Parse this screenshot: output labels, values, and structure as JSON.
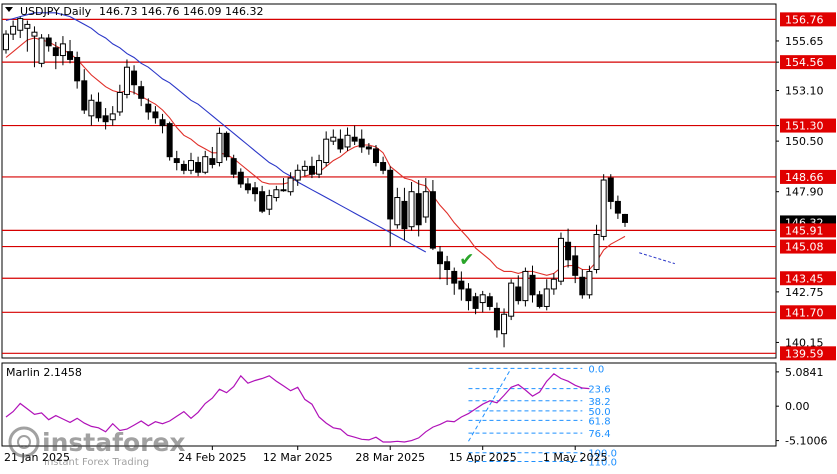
{
  "header": {
    "symbol": "USDJPY,Daily",
    "ohlc": "146.73 146.76 146.09 146.32",
    "collapse_icon": "triangle-down-icon"
  },
  "colors": {
    "bull": "#ffffff",
    "bear": "#000000",
    "ma_fast": "#e0302a",
    "ma_slow": "#2b37c8",
    "level_line": "#d60000",
    "level_label_bg": "#e00000",
    "current_price_bg": "#000000",
    "oscillator": "#b012b8",
    "fib": "#1e90ff",
    "check": "#2aa52a"
  },
  "chart_data": [
    {
      "type": "candlestick",
      "title": "USDJPY,Daily",
      "ylim": [
        139.35,
        157.55
      ],
      "y_ticks": [
        155.65,
        154.56,
        153.1,
        151.3,
        150.5,
        147.9,
        142.75,
        140.15
      ],
      "x_tick_labels": [
        "24 Feb 2025",
        "12 Mar 2025",
        "28 Mar 2025",
        "15 Apr 2025",
        "1 May 2025"
      ],
      "current_price": 146.32,
      "horizontal_levels": [
        156.76,
        154.56,
        151.3,
        148.66,
        145.91,
        145.08,
        143.45,
        141.7,
        139.59
      ],
      "candles": [
        [
          155.2,
          156.0,
          155.0,
          156.2
        ],
        [
          156.0,
          156.4,
          155.7,
          156.7
        ],
        [
          156.2,
          156.8,
          155.8,
          156.9
        ],
        [
          156.3,
          156.5,
          155.1,
          156.7
        ],
        [
          155.9,
          156.1,
          154.3,
          156.4
        ],
        [
          154.5,
          155.8,
          154.3,
          156.0
        ],
        [
          155.8,
          155.4,
          155.1,
          156.0
        ],
        [
          155.3,
          154.9,
          154.2,
          155.6
        ],
        [
          154.9,
          155.5,
          154.4,
          155.9
        ],
        [
          155.1,
          154.7,
          154.5,
          155.7
        ],
        [
          154.8,
          153.6,
          153.2,
          155.1
        ],
        [
          153.6,
          152.1,
          151.9,
          154.2
        ],
        [
          151.8,
          152.6,
          151.3,
          152.9
        ],
        [
          152.5,
          151.7,
          151.5,
          153.0
        ],
        [
          151.8,
          151.5,
          151.1,
          152.2
        ],
        [
          151.6,
          151.9,
          151.3,
          152.3
        ],
        [
          152.0,
          153.0,
          151.8,
          153.4
        ],
        [
          152.9,
          154.3,
          152.7,
          154.7
        ],
        [
          154.1,
          153.4,
          152.9,
          154.4
        ],
        [
          153.3,
          152.7,
          152.3,
          153.6
        ],
        [
          152.4,
          152.0,
          151.6,
          152.7
        ],
        [
          152.0,
          151.7,
          151.4,
          152.3
        ],
        [
          151.6,
          151.3,
          150.9,
          151.9
        ],
        [
          151.4,
          149.7,
          149.5,
          151.5
        ],
        [
          149.6,
          149.4,
          149.0,
          150.0
        ],
        [
          149.3,
          149.0,
          148.8,
          149.5
        ],
        [
          149.0,
          149.5,
          148.8,
          149.9
        ],
        [
          149.4,
          148.9,
          148.7,
          149.7
        ],
        [
          148.9,
          149.7,
          148.8,
          150.0
        ],
        [
          149.6,
          149.3,
          149.1,
          150.2
        ],
        [
          149.4,
          150.9,
          149.2,
          151.2
        ],
        [
          150.9,
          149.7,
          149.5,
          151.0
        ],
        [
          149.6,
          148.8,
          148.6,
          149.8
        ],
        [
          148.9,
          148.3,
          148.1,
          149.1
        ],
        [
          148.3,
          148.0,
          147.8,
          148.6
        ],
        [
          148.1,
          147.8,
          147.4,
          148.4
        ],
        [
          147.9,
          146.9,
          146.8,
          148.2
        ],
        [
          147.0,
          147.7,
          146.7,
          148.0
        ],
        [
          147.6,
          148.0,
          147.4,
          148.2
        ],
        [
          148.0,
          148.0,
          147.9,
          148.6
        ],
        [
          147.9,
          148.6,
          147.7,
          148.9
        ],
        [
          148.5,
          149.0,
          148.2,
          149.3
        ],
        [
          149.0,
          149.2,
          148.7,
          149.5
        ],
        [
          149.2,
          148.8,
          148.6,
          149.7
        ],
        [
          148.8,
          149.5,
          148.6,
          149.8
        ],
        [
          149.4,
          150.6,
          149.2,
          151.0
        ],
        [
          150.5,
          150.7,
          150.3,
          151.1
        ],
        [
          150.6,
          150.1,
          149.9,
          151.1
        ],
        [
          150.2,
          150.8,
          150.0,
          151.2
        ],
        [
          150.7,
          150.5,
          150.3,
          151.3
        ],
        [
          150.6,
          150.2,
          149.9,
          151.1
        ],
        [
          150.2,
          150.1,
          149.8,
          150.4
        ],
        [
          150.1,
          149.4,
          149.2,
          150.3
        ],
        [
          149.4,
          149.0,
          148.8,
          149.7
        ],
        [
          149.0,
          146.5,
          145.1,
          149.2
        ],
        [
          146.2,
          147.6,
          146.0,
          148.1
        ],
        [
          147.4,
          146.0,
          145.4,
          148.1
        ],
        [
          146.1,
          147.9,
          145.9,
          148.4
        ],
        [
          147.8,
          146.2,
          145.6,
          148.5
        ],
        [
          146.6,
          147.9,
          146.3,
          148.6
        ],
        [
          147.9,
          145.0,
          144.9,
          148.5
        ],
        [
          144.8,
          144.2,
          143.4,
          145.1
        ],
        [
          144.3,
          143.9,
          143.1,
          144.6
        ],
        [
          143.8,
          143.2,
          142.6,
          144.0
        ],
        [
          143.3,
          142.9,
          142.3,
          143.8
        ],
        [
          142.9,
          142.3,
          141.8,
          143.2
        ],
        [
          142.5,
          141.9,
          141.6,
          142.7
        ],
        [
          142.2,
          142.6,
          141.7,
          142.8
        ],
        [
          142.5,
          142.0,
          141.8,
          142.7
        ],
        [
          141.9,
          140.8,
          140.4,
          142.2
        ],
        [
          140.6,
          141.6,
          139.9,
          141.9
        ],
        [
          141.5,
          143.2,
          141.3,
          143.4
        ],
        [
          143.0,
          142.3,
          142.1,
          143.6
        ],
        [
          142.3,
          143.8,
          142.0,
          144.0
        ],
        [
          143.6,
          142.6,
          142.2,
          144.1
        ],
        [
          142.6,
          142.0,
          141.9,
          142.8
        ],
        [
          142.0,
          142.9,
          141.8,
          143.4
        ],
        [
          142.9,
          143.4,
          142.6,
          143.7
        ],
        [
          143.3,
          145.5,
          143.1,
          145.8
        ],
        [
          145.3,
          144.4,
          144.0,
          146.0
        ],
        [
          144.6,
          143.6,
          143.2,
          145.1
        ],
        [
          143.5,
          142.6,
          142.4,
          143.9
        ],
        [
          142.6,
          143.8,
          142.4,
          144.1
        ],
        [
          143.9,
          145.7,
          143.7,
          146.2
        ],
        [
          145.6,
          148.5,
          145.4,
          148.8
        ],
        [
          148.6,
          147.4,
          147.0,
          148.8
        ],
        [
          147.4,
          146.8,
          146.5,
          147.7
        ],
        [
          146.73,
          146.32,
          146.09,
          146.76
        ]
      ],
      "series": [
        {
          "name": "fast",
          "values": [
            154.8,
            155.1,
            155.4,
            155.7,
            155.8,
            155.7,
            155.6,
            155.4,
            155.2,
            155.0,
            154.7,
            154.3,
            153.9,
            153.6,
            153.3,
            153.1,
            153.0,
            153.1,
            153.0,
            152.8,
            152.6,
            152.4,
            152.1,
            151.7,
            151.2,
            150.8,
            150.6,
            150.3,
            150.1,
            149.9,
            149.9,
            149.8,
            149.6,
            149.3,
            149.0,
            148.7,
            148.4,
            148.3,
            148.3,
            148.3,
            148.4,
            148.6,
            148.7,
            148.8,
            148.9,
            149.2,
            149.5,
            149.7,
            150.0,
            150.2,
            150.3,
            150.3,
            150.2,
            149.9,
            149.2,
            148.9,
            148.6,
            148.5,
            148.3,
            148.2,
            147.7,
            147.2,
            146.8,
            146.3,
            145.9,
            145.5,
            145.0,
            144.7,
            144.4,
            144.0,
            143.8,
            143.8,
            143.7,
            143.8,
            143.8,
            143.7,
            143.6,
            143.7,
            144.0,
            144.1,
            144.1,
            143.9,
            143.9,
            144.3,
            144.9,
            145.2,
            145.4,
            145.6
          ]
        },
        {
          "name": "slow",
          "values": [
            156.7,
            156.8,
            156.9,
            157.0,
            157.1,
            157.1,
            157.1,
            157.1,
            157.0,
            156.9,
            156.7,
            156.5,
            156.3,
            156.0,
            155.8,
            155.5,
            155.3,
            155.0,
            154.8,
            154.5,
            154.3,
            154.0,
            153.7,
            153.5,
            153.2,
            152.9,
            152.6,
            152.4,
            152.1,
            151.8,
            151.5,
            151.2,
            150.9,
            150.6,
            150.3,
            150.0,
            149.7,
            149.4,
            149.2,
            148.9,
            148.7,
            148.4,
            148.2,
            148.0,
            147.8,
            147.6,
            147.4,
            147.2,
            147.0,
            146.8,
            146.6,
            146.4,
            146.2,
            146.0,
            145.8,
            145.6,
            145.4,
            145.2,
            145.0,
            144.8
          ]
        }
      ],
      "projection": {
        "from": [
          89,
          144.76
        ],
        "to": [
          94,
          144.2
        ]
      },
      "check_mark_at_index": 63,
      "check_symbol": "✔"
    },
    {
      "type": "line",
      "title": "Marlin 2.1458",
      "ylim": [
        -5.9,
        6.4
      ],
      "y_ticks": [
        5.0841,
        0.0,
        -5.1006
      ],
      "values": [
        -1.6,
        -0.8,
        0.4,
        -0.4,
        -1.2,
        -1.0,
        -2.0,
        -1.4,
        -1.9,
        -2.4,
        -1.8,
        -2.5,
        -3.0,
        -3.2,
        -3.8,
        -2.6,
        -3.6,
        -3.4,
        -2.8,
        -2.2,
        -2.9,
        -2.3,
        -2.6,
        -2.2,
        -1.5,
        -0.8,
        -1.8,
        -0.9,
        0.4,
        1.2,
        2.5,
        2.0,
        2.9,
        4.5,
        3.4,
        3.8,
        4.1,
        4.5,
        3.7,
        3.0,
        2.3,
        2.8,
        1.0,
        0.3,
        -1.6,
        -2.5,
        -3.2,
        -3.4,
        -4.3,
        -4.6,
        -4.9,
        -5.0,
        -4.6,
        -5.3,
        -5.3,
        -5.2,
        -5.3,
        -5.1,
        -4.7,
        -3.8,
        -3.1,
        -2.7,
        -2.2,
        -2.3,
        -1.6,
        -1.1,
        -0.4,
        0.3,
        0.8,
        0.5,
        1.6,
        2.8,
        3.2,
        2.4,
        1.5,
        2.1,
        3.7,
        4.8,
        4.1,
        3.7,
        3.1,
        2.7,
        2.6
      ],
      "fib_levels": [
        {
          "label": "0.0",
          "value": 5.6
        },
        {
          "label": "23.6",
          "value": 2.6
        },
        {
          "label": "38.2",
          "value": 0.8
        },
        {
          "label": "50.0",
          "value": -0.7
        },
        {
          "label": "61.8",
          "value": -2.1
        },
        {
          "label": "76.4",
          "value": -4.0
        },
        {
          "label": "100.0",
          "value": -6.9
        },
        {
          "label": "110.0",
          "value": -8.2
        }
      ],
      "fib_range": [
        65,
        81
      ],
      "fib_anchor": [
        [
          65,
          -5.2
        ],
        [
          71,
          5.6
        ]
      ]
    }
  ],
  "watermark": {
    "brand": "instaforex",
    "tagline": "Instant Forex Trading",
    "icon": "instaforex-logo-icon"
  },
  "x_axis_truncated_label": "21 Jan 2025"
}
